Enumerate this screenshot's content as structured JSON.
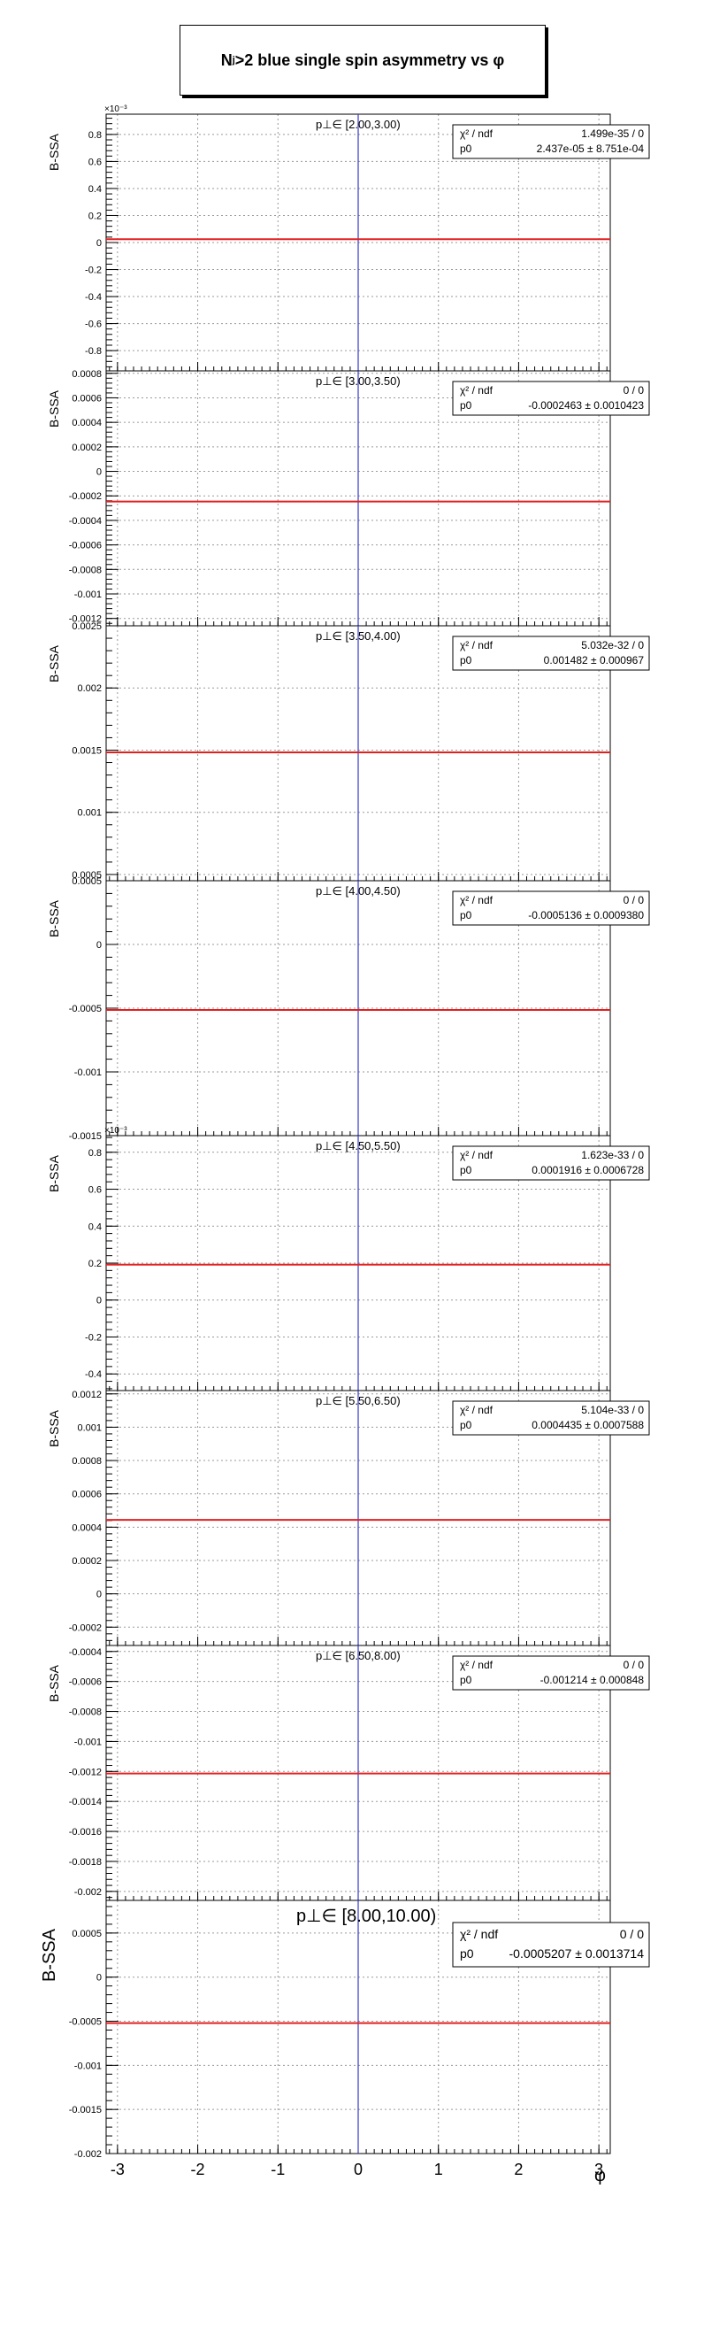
{
  "page": {
    "title_main": "N",
    "title_sub": "j",
    "title_rest": ">2 blue single spin asymmetry vs φ",
    "x_axis_label": "φ"
  },
  "chart_data": [
    {
      "type": "line",
      "panel": 1,
      "ylabel": "B-SSA",
      "exponent_label": "×10⁻³",
      "pt_bin": "p⊥∈ [2.00,3.00)",
      "xlim": [
        -3.14159,
        3.14159
      ],
      "ylim": [
        -0.00095,
        0.00095
      ],
      "yticks": [
        -0.0008,
        -0.0006,
        -0.0004,
        -0.0002,
        0,
        0.0002,
        0.0004,
        0.0006,
        0.0008
      ],
      "ytick_labels": [
        "-0.8",
        "-0.6",
        "-0.4",
        "-0.2",
        "0",
        "0.2",
        "0.4",
        "0.6",
        "0.8"
      ],
      "fit": {
        "chi2_label": "χ² / ndf",
        "chi2_value": "1.499e-35 / 0",
        "p0_label": "p0",
        "p0_value": "2.437e-05 ± 8.751e-04",
        "p0": 2.437e-05
      }
    },
    {
      "type": "line",
      "panel": 2,
      "ylabel": "B-SSA",
      "pt_bin": "p⊥∈ [3.00,3.50)",
      "xlim": [
        -3.14159,
        3.14159
      ],
      "ylim": [
        -0.00126,
        0.00082
      ],
      "yticks": [
        -0.0012,
        -0.001,
        -0.0008,
        -0.0006,
        -0.0004,
        -0.0002,
        0,
        0.0002,
        0.0004,
        0.0006,
        0.0008
      ],
      "ytick_labels": [
        "-0.0012",
        "-0.001",
        "-0.0008",
        "-0.0006",
        "-0.0004",
        "-0.0002",
        "0",
        "0.0002",
        "0.0004",
        "0.0006",
        "0.0008"
      ],
      "fit": {
        "chi2_label": "χ² / ndf",
        "chi2_value": "0 / 0",
        "p0_label": "p0",
        "p0_value": "-0.0002463 ± 0.0010423",
        "p0": -0.0002463
      }
    },
    {
      "type": "line",
      "panel": 3,
      "ylabel": "B-SSA",
      "pt_bin": "p⊥∈ [3.50,4.00)",
      "xlim": [
        -3.14159,
        3.14159
      ],
      "ylim": [
        0.00045,
        0.0025
      ],
      "yticks": [
        0.0005,
        0.001,
        0.0015,
        0.002,
        0.0025
      ],
      "ytick_labels": [
        "0.0005",
        "0.001",
        "0.0015",
        "0.002",
        "0.0025"
      ],
      "fit": {
        "chi2_label": "χ² / ndf",
        "chi2_value": "5.032e-32 / 0",
        "p0_label": "p0",
        "p0_value": "0.001482 ± 0.000967",
        "p0": 0.001482
      }
    },
    {
      "type": "line",
      "panel": 4,
      "ylabel": "B-SSA",
      "pt_bin": "p⊥∈ [4.00,4.50)",
      "xlim": [
        -3.14159,
        3.14159
      ],
      "ylim": [
        -0.0015,
        0.0005
      ],
      "yticks": [
        -0.0015,
        -0.001,
        -0.0005,
        0,
        0.0005
      ],
      "ytick_labels": [
        "-0.0015",
        "-0.001",
        "-0.0005",
        "0",
        "0.0005"
      ],
      "fit": {
        "chi2_label": "χ² / ndf",
        "chi2_value": "0 / 0",
        "p0_label": "p0",
        "p0_value": "-0.0005136 ± 0.0009380",
        "p0": -0.0005136
      }
    },
    {
      "type": "line",
      "panel": 5,
      "ylabel": "B-SSA",
      "exponent_label": "×10⁻³",
      "pt_bin": "p⊥∈ [4.50,5.50)",
      "xlim": [
        -3.14159,
        3.14159
      ],
      "ylim": [
        -0.00049,
        0.00089
      ],
      "yticks": [
        -0.0004,
        -0.0002,
        0,
        0.0002,
        0.0004,
        0.0006,
        0.0008
      ],
      "ytick_labels": [
        "-0.4",
        "-0.2",
        "0",
        "0.2",
        "0.4",
        "0.6",
        "0.8"
      ],
      "fit": {
        "chi2_label": "χ² / ndf",
        "chi2_value": "1.623e-33 / 0",
        "p0_label": "p0",
        "p0_value": "0.0001916 ± 0.0006728",
        "p0": 0.0001916
      }
    },
    {
      "type": "line",
      "panel": 6,
      "ylabel": "B-SSA",
      "pt_bin": "p⊥∈ [5.50,6.50)",
      "xlim": [
        -3.14159,
        3.14159
      ],
      "ylim": [
        -0.00031,
        0.00122
      ],
      "yticks": [
        -0.0002,
        0,
        0.0002,
        0.0004,
        0.0006,
        0.0008,
        0.001,
        0.0012
      ],
      "ytick_labels": [
        "-0.0002",
        "0",
        "0.0002",
        "0.0004",
        "0.0006",
        "0.0008",
        "0.001",
        "0.0012"
      ],
      "fit": {
        "chi2_label": "χ² / ndf",
        "chi2_value": "5.104e-33 / 0",
        "p0_label": "p0",
        "p0_value": "0.0004435 ± 0.0007588",
        "p0": 0.0004435
      }
    },
    {
      "type": "line",
      "panel": 7,
      "ylabel": "B-SSA",
      "pt_bin": "p⊥∈ [6.50,8.00)",
      "xlim": [
        -3.14159,
        3.14159
      ],
      "ylim": [
        -0.00206,
        -0.00036
      ],
      "yticks": [
        -0.002,
        -0.0018,
        -0.0016,
        -0.0014,
        -0.0012,
        -0.001,
        -0.0008,
        -0.0006,
        -0.0004
      ],
      "ytick_labels": [
        "-0.002",
        "-0.0018",
        "-0.0016",
        "-0.0014",
        "-0.0012",
        "-0.001",
        "-0.0008",
        "-0.0006",
        "-0.0004"
      ],
      "fit": {
        "chi2_label": "χ² / ndf",
        "chi2_value": "0 / 0",
        "p0_label": "p0",
        "p0_value": "-0.001214 ± 0.000848",
        "p0": -0.001214
      }
    },
    {
      "type": "line",
      "panel": 8,
      "ylabel": "B-SSA",
      "pt_bin": "p⊥∈ [8.00,10.00)",
      "xlim": [
        -3.14159,
        3.14159
      ],
      "ylim": [
        -0.002,
        0.00087
      ],
      "yticks": [
        -0.002,
        -0.0015,
        -0.001,
        -0.0005,
        0,
        0.0005
      ],
      "ytick_labels": [
        "-0.002",
        "-0.0015",
        "-0.001",
        "-0.0005",
        "0",
        "0.0005"
      ],
      "xticks": [
        -3,
        -2,
        -1,
        0,
        1,
        2,
        3
      ],
      "xtick_labels": [
        "-3",
        "-2",
        "-1",
        "0",
        "1",
        "2",
        "3"
      ],
      "fit": {
        "chi2_label": "χ² / ndf",
        "chi2_value": "0 / 0",
        "p0_label": "p0",
        "p0_value": "-0.0005207 ± 0.0013714",
        "p0": -0.0005207
      }
    }
  ]
}
